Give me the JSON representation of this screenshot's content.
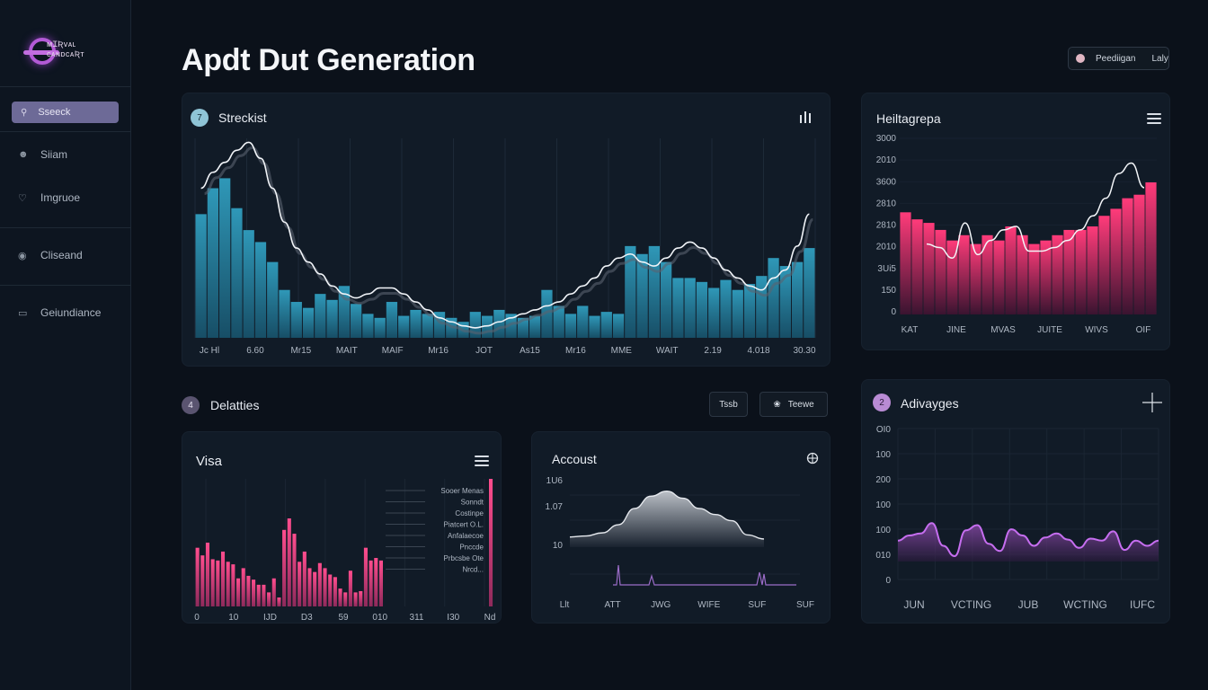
{
  "app": {
    "logo_line1": "ᴍɪʀᴠᴀʟ",
    "logo_line2": "ᴄᴀɴᴅᴄᴀʀᴛ"
  },
  "sidebar": {
    "search_label": "Sseeck",
    "items": [
      {
        "label": "Siiam",
        "icon": "user-icon"
      },
      {
        "label": "Imgruoe",
        "icon": "heart-icon"
      },
      {
        "label": "Cliseand",
        "icon": "globe-icon"
      },
      {
        "label": "Geiundiance",
        "icon": "square-icon"
      }
    ]
  },
  "header": {
    "title": "Apdt Dut Generation",
    "user_name": "Peediigan",
    "user_status": "Laly"
  },
  "main_chart": {
    "title": "Streckist",
    "icon_glyph": "7",
    "x_ticks": [
      "Jc Hl",
      "6.60",
      "Mr15",
      "MAIT",
      "MAIF",
      "Mr16",
      "JOT",
      "As15",
      "Mr16",
      "MME",
      "WAIT",
      "2.19",
      "4.018",
      "30.30"
    ]
  },
  "heat_chart": {
    "title": "Heiltagrepa",
    "y_ticks": [
      "3000",
      "2010",
      "3600",
      "2810",
      "2810",
      "2010",
      "3Ui5",
      "150",
      "0"
    ],
    "x_ticks": [
      "KAT",
      "JINE",
      "MVAS",
      "JUITE",
      "WIVS",
      "OIF"
    ]
  },
  "deliveries": {
    "title": "Delatties",
    "icon_glyph": "4",
    "btn_1": "Tssb",
    "btn_2": "Teewe"
  },
  "visa_chart": {
    "title": "Visa",
    "x_ticks": [
      "0",
      "10",
      "IJD",
      "D3",
      "59",
      "010",
      "311",
      "I30",
      "Nd"
    ],
    "legend": [
      "Sooer Menas",
      "Sonndt",
      "Costinpe",
      "Piatcert O.L.",
      "Anfalaecoe",
      "Pnccde",
      "Prbcsbe Ote",
      "Nrcd..."
    ]
  },
  "account_chart": {
    "title": "Accoust",
    "y_ticks": [
      "1U6",
      "1.07",
      "10"
    ],
    "x_ticks": [
      "Llt",
      "ATT",
      "JWG",
      "WIFE",
      "SUF",
      "SUF"
    ]
  },
  "advantages_chart": {
    "title": "Adivayges",
    "icon_glyph": "2",
    "y_ticks": [
      "OI0",
      "100",
      "200",
      "100",
      "100",
      "010",
      "0"
    ],
    "x_ticks": [
      "JUN",
      "VCTING",
      "JUB",
      "WCTING",
      "IUFC"
    ]
  },
  "chart_data": [
    {
      "type": "bar",
      "name": "main",
      "values": [
        62,
        75,
        80,
        65,
        54,
        48,
        38,
        24,
        18,
        15,
        22,
        19,
        26,
        17,
        12,
        10,
        18,
        11,
        14,
        12,
        13,
        10,
        8,
        13,
        11,
        14,
        12,
        10,
        11,
        24,
        16,
        12,
        16,
        11,
        13,
        12,
        46,
        42,
        46,
        38,
        30,
        30,
        28,
        25,
        29,
        24,
        27,
        31,
        40,
        36,
        38,
        45
      ],
      "line": [
        75,
        83,
        88,
        94,
        98,
        90,
        75,
        58,
        45,
        38,
        32,
        26,
        22,
        20,
        22,
        25,
        25,
        22,
        18,
        14,
        10,
        8,
        6,
        5,
        6,
        8,
        10,
        12,
        14,
        16,
        18,
        22,
        26,
        30,
        36,
        40,
        42,
        38,
        36,
        40,
        45,
        48,
        45,
        40,
        34,
        30,
        26,
        24,
        30,
        34,
        46,
        62
      ],
      "ylim": [
        0,
        100
      ]
    },
    {
      "type": "bar",
      "name": "heat",
      "values": [
        58,
        54,
        52,
        48,
        42,
        45,
        40,
        45,
        42,
        50,
        45,
        40,
        42,
        45,
        48,
        48,
        50,
        56,
        60,
        66,
        68,
        75
      ],
      "line": [
        40,
        38,
        32,
        52,
        34,
        42,
        48,
        50,
        36,
        36,
        38,
        42,
        48,
        56,
        66,
        80,
        86,
        72
      ],
      "ylim": [
        0,
        100
      ]
    },
    {
      "type": "bar",
      "name": "visa",
      "values": [
        46,
        40,
        50,
        37,
        36,
        43,
        35,
        33,
        22,
        30,
        24,
        21,
        17,
        17,
        11,
        22,
        7,
        60,
        69,
        57,
        35,
        43,
        30,
        27,
        34,
        30,
        25,
        23,
        14,
        11,
        28,
        11,
        12,
        46,
        36,
        38,
        36,
        100
      ],
      "ylim": [
        0,
        100
      ]
    },
    {
      "type": "area",
      "name": "account",
      "values": [
        10,
        11,
        14,
        22,
        38,
        50,
        55,
        48,
        38,
        32,
        26,
        12,
        8
      ],
      "ylim": [
        0,
        100
      ]
    },
    {
      "type": "line",
      "name": "advantages",
      "values": [
        45,
        50,
        52,
        62,
        40,
        30,
        55,
        60,
        42,
        35,
        56,
        50,
        40,
        48,
        52,
        46,
        38,
        47,
        45,
        54,
        36,
        45,
        40,
        45
      ],
      "ylim": [
        0,
        100
      ]
    }
  ],
  "colors": {
    "teal": "#2c8fae",
    "pink": "#ff3d7f",
    "purple": "#b45ad7",
    "bg": "#0b111a"
  }
}
